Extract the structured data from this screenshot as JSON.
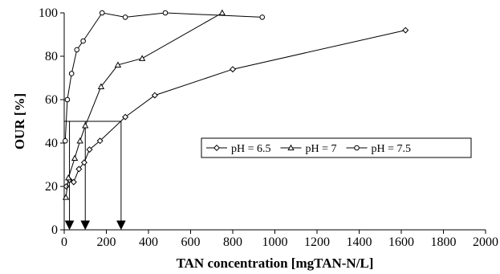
{
  "chart_data": {
    "type": "line",
    "title": "",
    "xlabel": "TAN concentration [mgTAN-N/L]",
    "ylabel": "OUR [%]",
    "xlim": [
      0,
      2000
    ],
    "ylim": [
      0,
      100
    ],
    "xticks": [
      0,
      200,
      400,
      600,
      800,
      1000,
      1200,
      1400,
      1600,
      1800,
      2000
    ],
    "yticks": [
      0,
      20,
      40,
      60,
      80,
      100
    ],
    "grid": false,
    "legend_position": "right-center",
    "series": [
      {
        "name": "pH = 6.5",
        "marker": "diamond",
        "x": [
          10,
          25,
          45,
          70,
          95,
          120,
          170,
          290,
          430,
          800,
          1620
        ],
        "y": [
          20,
          23,
          22,
          28,
          31,
          37,
          41,
          52,
          62,
          74,
          92
        ]
      },
      {
        "name": "pH = 7",
        "marker": "triangle",
        "x": [
          8,
          20,
          50,
          75,
          100,
          175,
          255,
          370,
          750
        ],
        "y": [
          15,
          24,
          33,
          41,
          48,
          66,
          76,
          79,
          100
        ]
      },
      {
        "name": "pH = 7.5",
        "marker": "circle",
        "x": [
          5,
          15,
          35,
          60,
          90,
          180,
          290,
          480,
          940
        ],
        "y": [
          41,
          60,
          72,
          83,
          87,
          100,
          98,
          100,
          98
        ]
      }
    ],
    "guides": {
      "y_level": 50,
      "x_values": [
        25,
        100,
        270
      ]
    }
  }
}
